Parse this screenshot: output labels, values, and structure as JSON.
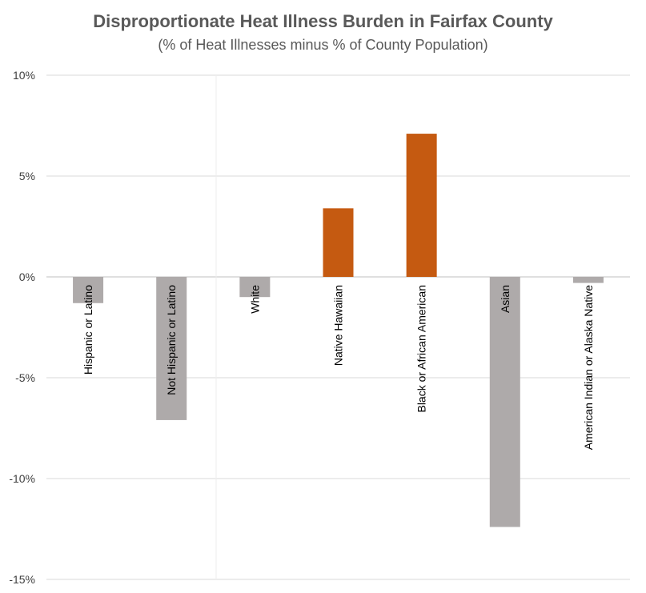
{
  "chart_data": {
    "type": "bar",
    "title": "Disproportionate Heat Illness Burden in Fairfax County",
    "subtitle": "(% of Heat Illnesses minus % of County Population)",
    "categories": [
      "Hispanic or Latino",
      "Not Hispanic or Latino",
      "White",
      "Native Hawaiian",
      "Black or African American",
      "Asian",
      "American Indian or Alaska Native"
    ],
    "values": [
      -1.3,
      -7.1,
      -1.0,
      3.4,
      7.1,
      -12.4,
      -0.3
    ],
    "ylim": [
      -15,
      10
    ],
    "yticks": [
      10,
      5,
      0,
      -5,
      -10,
      -15
    ],
    "ytick_labels": [
      "10%",
      "5%",
      "0%",
      "-5%",
      "-10%",
      "-15%"
    ],
    "grid": true,
    "colors": {
      "positive": "#c55a11",
      "negative": "#aeaaaa",
      "grid": "#d9d9d9",
      "axis": "#bfbfbf"
    }
  }
}
